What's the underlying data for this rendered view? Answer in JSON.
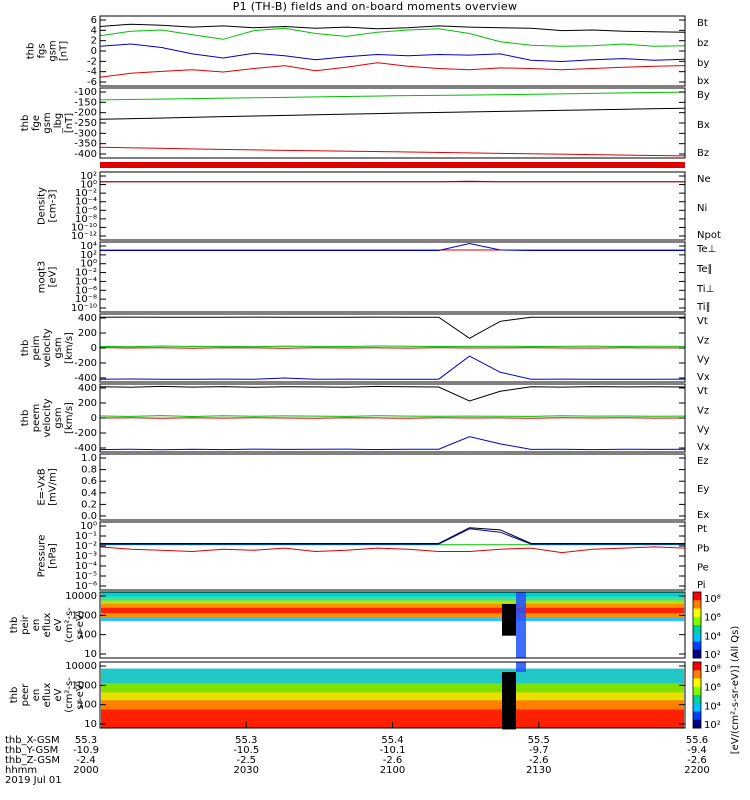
{
  "title": "P1 (TH-B) fields and on-board moments overview",
  "colors": {
    "black": "#000000",
    "red": "#e00000",
    "green": "#00c000",
    "blue": "#0000c8",
    "axis": "#000000"
  },
  "chart_data": [
    {
      "type": "line",
      "name": "fgs_gsm",
      "ylabel_lines": [
        "thb",
        "fgs",
        "gsm",
        "[nT]"
      ],
      "yticks": [
        "6",
        "4",
        "2",
        "0",
        "-2",
        "-4",
        "-6"
      ],
      "ylim": [
        -6,
        6
      ],
      "legend": [
        {
          "text": "Bt",
          "color": "black"
        },
        {
          "text": "bz",
          "color": "red"
        },
        {
          "text": "by",
          "color": "green"
        },
        {
          "text": "bx",
          "color": "blue"
        }
      ],
      "series": [
        {
          "color": "black",
          "values": [
            4.2,
            4.6,
            4.4,
            4.1,
            4.3,
            4.0,
            4.2,
            3.9,
            4.1,
            3.8,
            4.0,
            4.3,
            4.1,
            4.0,
            3.9,
            3.5,
            3.6,
            3.4,
            3.3,
            3.2
          ]
        },
        {
          "color": "red",
          "values": [
            -4.5,
            -3.8,
            -3.5,
            -3.2,
            -3.6,
            -3.0,
            -2.5,
            -3.4,
            -2.8,
            -2.0,
            -2.6,
            -3.0,
            -3.2,
            -2.9,
            -3.0,
            -3.2,
            -3.0,
            -2.8,
            -2.6,
            -2.5
          ]
        },
        {
          "color": "green",
          "values": [
            2.6,
            3.4,
            3.6,
            2.8,
            2.0,
            3.5,
            3.9,
            3.0,
            2.5,
            3.2,
            3.6,
            3.8,
            3.0,
            1.6,
            1.0,
            0.8,
            0.9,
            1.2,
            0.8,
            0.9
          ]
        },
        {
          "color": "blue",
          "values": [
            0.8,
            1.2,
            0.6,
            -0.5,
            -1.2,
            -0.4,
            -0.8,
            -1.5,
            -1.0,
            -0.6,
            -0.8,
            -0.6,
            -0.7,
            -0.5,
            -1.6,
            -1.8,
            -1.5,
            -1.3,
            -1.6,
            -1.4
          ]
        }
      ]
    },
    {
      "type": "line",
      "name": "fge_gsm_lbg",
      "ylabel_lines": [
        "thb",
        "fge",
        "gsm",
        "_lbg",
        "[nT]"
      ],
      "yticks": [
        "-100",
        "-150",
        "-200",
        "-250",
        "-300",
        "-350",
        "-400"
      ],
      "ylim": [
        -420,
        -80
      ],
      "legend": [
        {
          "text": "By",
          "color": "green"
        },
        {
          "text": "Bx",
          "color": "black"
        },
        {
          "text": "Bz",
          "color": "red"
        }
      ],
      "series": [
        {
          "color": "green",
          "values": [
            -138,
            -134,
            -130,
            -126,
            -122,
            -118,
            -115,
            -112,
            -108,
            -104,
            -100
          ]
        },
        {
          "color": "black",
          "values": [
            -232,
            -226,
            -220,
            -214,
            -208,
            -203,
            -198,
            -193,
            -188,
            -183,
            -178
          ]
        },
        {
          "color": "red",
          "values": [
            -368,
            -373,
            -378,
            -382,
            -386,
            -390,
            -394,
            -398,
            -402,
            -406,
            -410
          ]
        }
      ]
    },
    {
      "type": "line",
      "name": "density",
      "ylabel_lines": [
        "Density",
        "[cm-3]"
      ],
      "yticks": [
        "10²",
        "10⁰",
        "10⁻²",
        "10⁻⁴",
        "10⁻⁶",
        "10⁻⁸",
        "10⁻¹⁰",
        "10⁻¹²"
      ],
      "ylim": [
        -12,
        2
      ],
      "legend": [
        {
          "text": "Ne",
          "color": "red"
        },
        {
          "text": "Ni",
          "color": "black"
        },
        {
          "text": "Npot",
          "color": "blue"
        }
      ],
      "series": [
        {
          "color": "black",
          "values": [
            0,
            0,
            0,
            0,
            0,
            0,
            0,
            0,
            0,
            0,
            0,
            0,
            0.1,
            0,
            0,
            0,
            0,
            0,
            0,
            0
          ]
        },
        {
          "color": "red",
          "values": [
            0,
            0,
            0,
            0,
            0,
            0,
            0,
            0,
            0,
            0,
            0,
            0,
            0,
            0,
            0,
            0,
            0,
            0,
            0,
            0
          ]
        }
      ]
    },
    {
      "type": "line",
      "name": "moms_temperature",
      "ylabel_lines": [
        "moqt3",
        "[eV]"
      ],
      "yticks": [
        "10⁴",
        "10²",
        "10⁰",
        "10⁻²",
        "10⁻⁴",
        "10⁻⁶",
        "10⁻⁸",
        "10⁻¹⁰"
      ],
      "ylim": [
        -10,
        4
      ],
      "legend": [
        {
          "text": "Te⊥",
          "color": "red"
        },
        {
          "text": "Te∥",
          "color": "black"
        },
        {
          "text": "Ti⊥",
          "color": "blue"
        },
        {
          "text": "Ti∥",
          "color": "green"
        }
      ],
      "series": [
        {
          "color": "red",
          "values": [
            2.4,
            2.4,
            2.4,
            2.4,
            2.4,
            2.4,
            2.4,
            2.4,
            2.4,
            2.4,
            2.4,
            2.4,
            2.4,
            2.4,
            2.4,
            2.4,
            2.4,
            2.4,
            2.4,
            2.4
          ]
        },
        {
          "color": "blue",
          "values": [
            2.3,
            2.3,
            2.3,
            2.3,
            2.3,
            2.3,
            2.3,
            2.3,
            2.3,
            2.3,
            2.3,
            2.3,
            3.7,
            2.4,
            2.3,
            2.3,
            2.3,
            2.3,
            2.3,
            2.3
          ]
        }
      ]
    },
    {
      "type": "line",
      "name": "peim_velocity",
      "ylabel_lines": [
        "thb",
        "peim",
        "velocity",
        "gsm",
        "[km/s]"
      ],
      "yticks": [
        "400",
        "200",
        "0",
        "-200",
        "-400"
      ],
      "ylim": [
        -420,
        420
      ],
      "legend": [
        {
          "text": "Vt",
          "color": "black"
        },
        {
          "text": "Vz",
          "color": "red"
        },
        {
          "text": "Vy",
          "color": "green"
        },
        {
          "text": "Vx",
          "color": "blue"
        }
      ],
      "series": [
        {
          "color": "black",
          "values": [
            380,
            382,
            380,
            381,
            380,
            382,
            381,
            380,
            380,
            382,
            381,
            380,
            120,
            330,
            380,
            381,
            380,
            381,
            380,
            380
          ]
        },
        {
          "color": "red",
          "values": [
            5,
            0,
            3,
            -2,
            4,
            1,
            -3,
            2,
            0,
            3,
            -1,
            2,
            0,
            1,
            2,
            0,
            -1,
            3,
            1,
            0
          ]
        },
        {
          "color": "green",
          "values": [
            20,
            15,
            25,
            18,
            22,
            16,
            24,
            20,
            18,
            25,
            21,
            19,
            20,
            22,
            18,
            20,
            23,
            19,
            21,
            20
          ]
        },
        {
          "color": "blue",
          "values": [
            -385,
            -383,
            -385,
            -386,
            -384,
            -385,
            -370,
            -385,
            -384,
            -385,
            -386,
            -385,
            -100,
            -300,
            -385,
            -384,
            -385,
            -386,
            -385,
            -384
          ]
        }
      ]
    },
    {
      "type": "line",
      "name": "peem_velocity",
      "ylabel_lines": [
        "thb",
        "peem",
        "velocity",
        "gsm",
        "[km/s]"
      ],
      "yticks": [
        "400",
        "200",
        "0",
        "-200",
        "-400"
      ],
      "ylim": [
        -420,
        420
      ],
      "legend": [
        {
          "text": "Vt",
          "color": "black"
        },
        {
          "text": "Vz",
          "color": "red"
        },
        {
          "text": "Vy",
          "color": "green"
        },
        {
          "text": "Vx",
          "color": "blue"
        }
      ],
      "series": [
        {
          "color": "black",
          "values": [
            385,
            380,
            390,
            382,
            388,
            381,
            386,
            384,
            380,
            390,
            385,
            383,
            210,
            330,
            385,
            382,
            388,
            384,
            386,
            383
          ]
        },
        {
          "color": "red",
          "values": [
            0,
            2,
            -3,
            4,
            -1,
            3,
            0,
            -2,
            4,
            1,
            -3,
            2,
            0,
            1,
            -2,
            3,
            0,
            2,
            -1,
            0
          ]
        },
        {
          "color": "green",
          "values": [
            25,
            20,
            30,
            18,
            28,
            22,
            26,
            24,
            20,
            29,
            23,
            21,
            24,
            22,
            20,
            27,
            23,
            25,
            22,
            24
          ]
        },
        {
          "color": "blue",
          "values": [
            -390,
            -385,
            -392,
            -386,
            -390,
            -384,
            -388,
            -386,
            -384,
            -390,
            -387,
            -385,
            -230,
            -320,
            -388,
            -386,
            -390,
            -385,
            -388,
            -386
          ]
        }
      ]
    },
    {
      "type": "line",
      "name": "efield",
      "ylabel_lines": [
        "E=-VxB",
        "[mV/m]"
      ],
      "yticks": [
        "1.0",
        "0.8",
        "0.6",
        "0.4",
        "0.2",
        "0.0"
      ],
      "ylim": [
        0,
        1
      ],
      "legend": [
        {
          "text": "Ez",
          "color": "red"
        },
        {
          "text": "Ey",
          "color": "green"
        },
        {
          "text": "Ex",
          "color": "blue"
        }
      ],
      "series": []
    },
    {
      "type": "line",
      "name": "pressure",
      "ylabel_lines": [
        "Pressure",
        "[nPa]"
      ],
      "yticks": [
        "10⁰",
        "10⁻¹",
        "10⁻²",
        "10⁻³",
        "10⁻⁴",
        "10⁻⁵",
        "10⁻⁶"
      ],
      "ylim": [
        -6,
        0
      ],
      "legend": [
        {
          "text": "Pt",
          "color": "black"
        },
        {
          "text": "Pb",
          "color": "red"
        },
        {
          "text": "Pe",
          "color": "green"
        },
        {
          "text": "Pi",
          "color": "blue"
        }
      ],
      "series": [
        {
          "color": "black",
          "values": [
            -1.9,
            -1.9,
            -1.9,
            -1.9,
            -1.9,
            -1.9,
            -1.9,
            -1.9,
            -1.9,
            -1.9,
            -1.9,
            -1.9,
            -0.5,
            -0.7,
            -1.9,
            -1.9,
            -1.9,
            -1.9,
            -1.9,
            -1.9
          ]
        },
        {
          "color": "red",
          "values": [
            -2.2,
            -2.4,
            -2.5,
            -2.6,
            -2.4,
            -2.5,
            -2.3,
            -2.6,
            -2.5,
            -2.3,
            -2.4,
            -2.6,
            -2.6,
            -2.4,
            -2.3,
            -2.7,
            -2.4,
            -2.3,
            -2.2,
            -2.3
          ]
        },
        {
          "color": "green",
          "values": [
            -2.0,
            -2.0,
            -2.0,
            -2.0,
            -2.0,
            -2.0,
            -2.0,
            -2.0,
            -2.0,
            -2.0,
            -2.0,
            -2.0,
            -2.0,
            -2.0,
            -2.0,
            -2.0,
            -2.0,
            -2.0,
            -2.0,
            -2.0
          ]
        },
        {
          "color": "blue",
          "values": [
            -1.95,
            -1.95,
            -1.95,
            -1.95,
            -1.95,
            -1.95,
            -1.95,
            -1.95,
            -1.95,
            -1.95,
            -1.95,
            -1.95,
            -0.6,
            -0.9,
            -1.95,
            -1.95,
            -1.95,
            -1.95,
            -1.95,
            -1.95
          ]
        }
      ]
    },
    {
      "type": "heatmap",
      "name": "peir_en_eflux",
      "ylabel_lines": [
        "thb",
        "peir",
        "en",
        "eflux",
        "eV",
        "(cm²-s-",
        "sr-eV)"
      ],
      "yticks": [
        "10000",
        "1000",
        "100",
        "10"
      ],
      "colorbar_ticks": [
        "10⁸",
        "10⁶",
        "10⁴",
        "10²"
      ],
      "colorbar_label": "[eV/(cm²-s-sr-eV)] (All Qs)"
    },
    {
      "type": "heatmap",
      "name": "peer_en_eflux",
      "ylabel_lines": [
        "thb",
        "peer",
        "en",
        "eflux",
        "eV",
        "(cm²-s-",
        "sr-eV)"
      ],
      "yticks": [
        "10000",
        "1000",
        "100",
        "10"
      ],
      "colorbar_ticks": [
        "10⁸",
        "10⁶",
        "10⁴",
        "10²"
      ]
    }
  ],
  "x_axis": {
    "row_labels": [
      "thb_X-GSM",
      "thb_Y-GSM",
      "thb_Z-GSM",
      "hhmm",
      "2019 Jul 01"
    ],
    "ticks": [
      {
        "x": "55.3",
        "y": "-10.9",
        "z": "-2.4",
        "hhmm": "2000"
      },
      {
        "x": "55.3",
        "y": "-10.5",
        "z": "-2.5",
        "hhmm": "2030"
      },
      {
        "x": "55.4",
        "y": "-10.1",
        "z": "-2.6",
        "hhmm": "2100"
      },
      {
        "x": "55.5",
        "y": "-9.7",
        "z": "-2.6",
        "hhmm": "2130"
      },
      {
        "x": "55.6",
        "y": "-9.4",
        "z": "-2.6",
        "hhmm": "2200"
      }
    ]
  }
}
